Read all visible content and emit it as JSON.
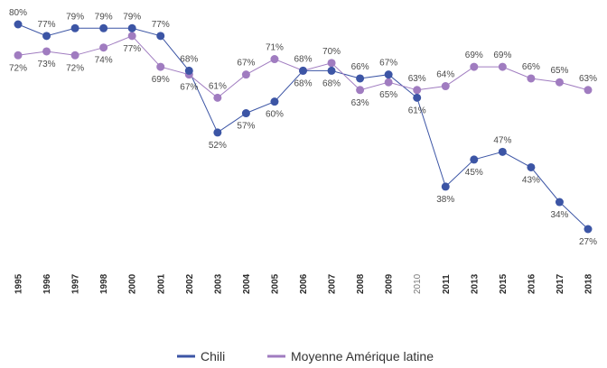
{
  "chart_data": {
    "type": "line",
    "categories": [
      "1995",
      "1996",
      "1997",
      "1998",
      "2000",
      "2001",
      "2002",
      "2003",
      "2004",
      "2005",
      "2006",
      "2007",
      "2008",
      "2009",
      "2010",
      "2011",
      "2013",
      "2015",
      "2016",
      "2017",
      "2018"
    ],
    "ylim": [
      20,
      85
    ],
    "grid": false,
    "legend_position": "bottom",
    "series": [
      {
        "name": "Chili",
        "color": "#3c55a5",
        "values": [
          80,
          77,
          79,
          79,
          79,
          77,
          68,
          52,
          57,
          60,
          68,
          68,
          66,
          67,
          61,
          38,
          45,
          47,
          43,
          34,
          27
        ],
        "labels": [
          "80%",
          "77%",
          "79%",
          "79%",
          "79%",
          "77%",
          "68%",
          "52%",
          "57%",
          "60%",
          "68%",
          "68%",
          "66%",
          "67%",
          "61%",
          "38%",
          "45%",
          "47%",
          "43%",
          "34%",
          "27%"
        ]
      },
      {
        "name": "Moyenne Amérique latine",
        "color": "#a07cc0",
        "values": [
          72,
          73,
          72,
          74,
          77,
          69,
          67,
          61,
          67,
          71,
          68,
          70,
          63,
          65,
          63,
          64,
          69,
          69,
          66,
          65,
          63
        ],
        "labels": [
          "72%",
          "73%",
          "72%",
          "74%",
          "77%",
          "69%",
          "67%",
          "61%",
          "67%",
          "71%",
          "68%",
          "70%",
          "63%",
          "65%",
          "63%",
          "64%",
          "69%",
          "69%",
          "66%",
          "65%",
          "63%"
        ]
      }
    ]
  }
}
